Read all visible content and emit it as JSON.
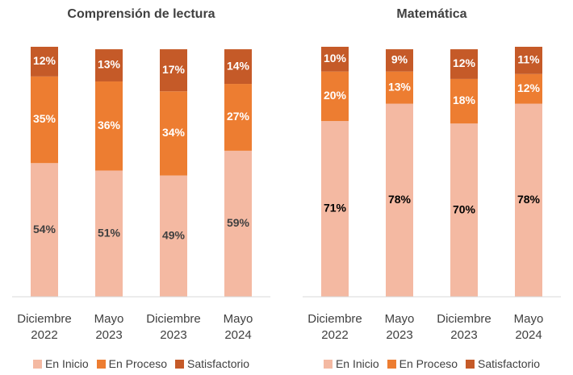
{
  "chart_data": [
    {
      "type": "stacked_bar",
      "title": "Comprensión de lectura",
      "categories": [
        "Diciembre 2022",
        "Mayo 2023",
        "Diciembre 2023",
        "Mayo 2024"
      ],
      "ylim": [
        0,
        101
      ],
      "legend": "bottom",
      "series": [
        {
          "name": "En Inicio",
          "color": "#f4b9a2",
          "label_color": "#404040",
          "values": [
            54,
            51,
            49,
            59
          ],
          "value_labels": [
            "54%",
            "51%",
            "49%",
            "59%"
          ]
        },
        {
          "name": "En Proceso",
          "color": "#ed7d31",
          "label_color": "#ffffff",
          "values": [
            35,
            36,
            34,
            27
          ],
          "value_labels": [
            "35%",
            "36%",
            "34%",
            "27%"
          ]
        },
        {
          "name": "Satisfactorio",
          "color": "#c55a28",
          "label_color": "#ffffff",
          "values": [
            12,
            13,
            17,
            14
          ],
          "value_labels": [
            "12%",
            "13%",
            "17%",
            "14%"
          ]
        }
      ]
    },
    {
      "type": "stacked_bar",
      "title": "Matemática",
      "categories": [
        "Diciembre 2022",
        "Mayo 2023",
        "Diciembre 2023",
        "Mayo 2024"
      ],
      "ylim": [
        0,
        101
      ],
      "legend": "bottom",
      "series": [
        {
          "name": "En Inicio",
          "color": "#f4b9a2",
          "label_color": "#000000",
          "values": [
            71,
            78,
            70,
            78
          ],
          "value_labels": [
            "71%",
            "78%",
            "70%",
            "78%"
          ]
        },
        {
          "name": "En Proceso",
          "color": "#ed7d31",
          "label_color": "#ffffff",
          "values": [
            20,
            13,
            18,
            12
          ],
          "value_labels": [
            "20%",
            "13%",
            "18%",
            "12%"
          ]
        },
        {
          "name": "Satisfactorio",
          "color": "#c55a28",
          "label_color": "#ffffff",
          "values": [
            10,
            9,
            12,
            11
          ],
          "value_labels": [
            "10%",
            "9%",
            "12%",
            "11%"
          ]
        }
      ]
    }
  ]
}
